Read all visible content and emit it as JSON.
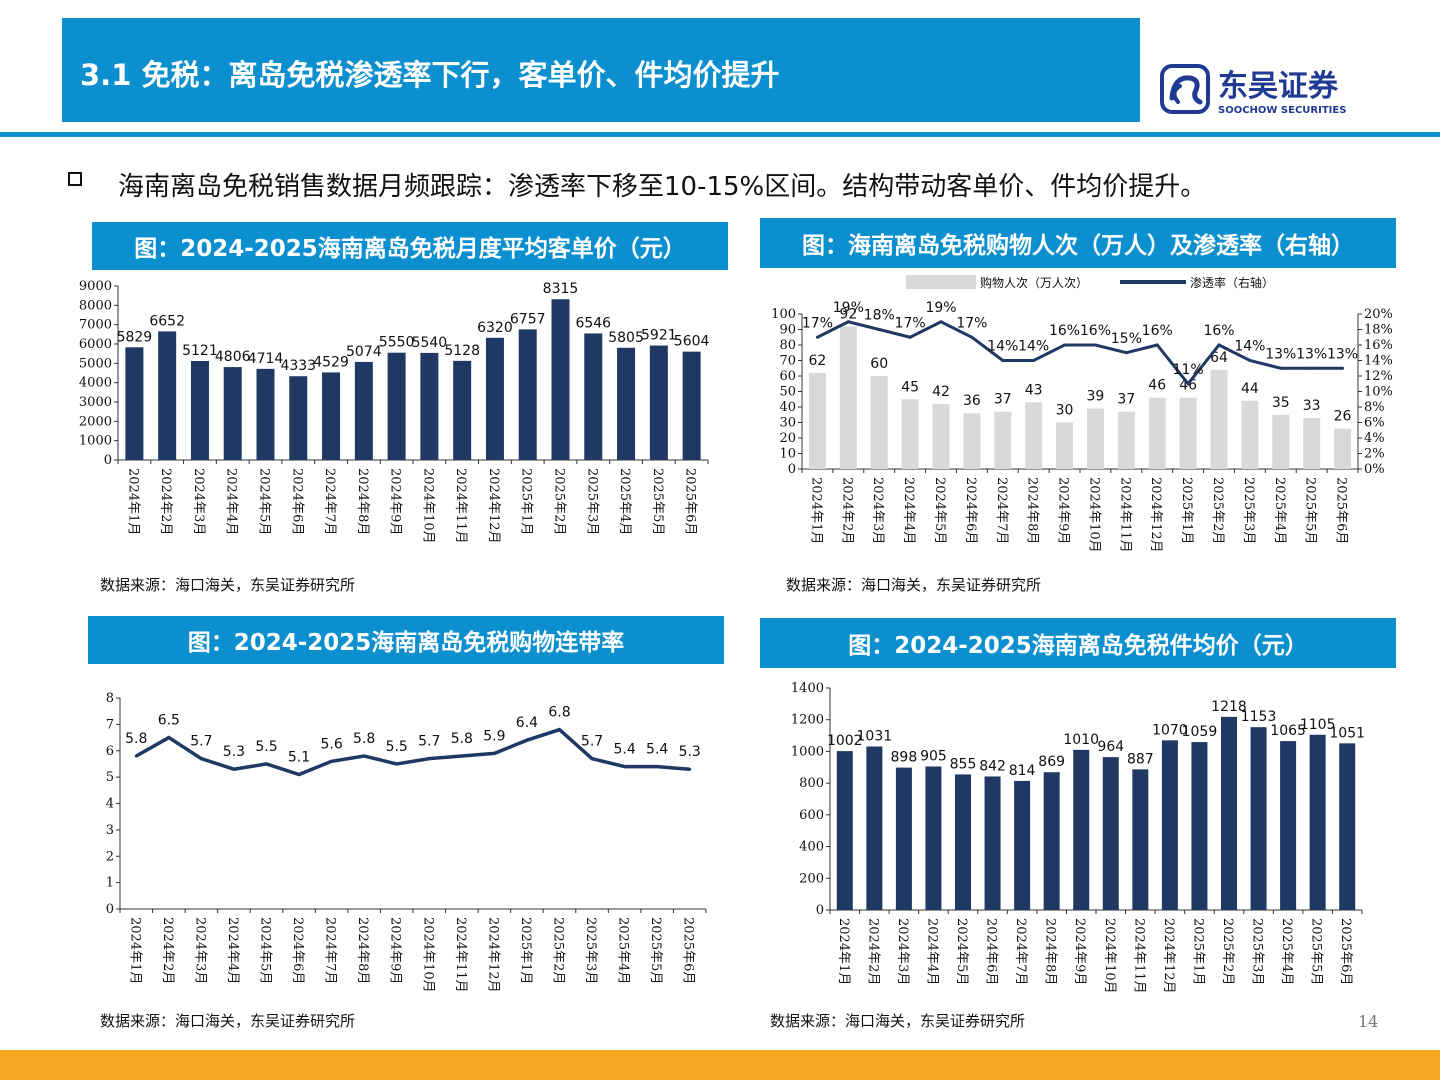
{
  "header": {
    "title": "3.1 免税：离岛免税渗透率下行，客单价、件均价提升",
    "brand_cn": "东吴证券",
    "brand_en": "SOOCHOW SECURITIES",
    "brand_color": "#0b8fcf",
    "accent_color": "#f5a623"
  },
  "bullet": {
    "text": "海南离岛免税销售数据月频跟踪：渗透率下移至10-15%区间。结构带动客单价、件均价提升。"
  },
  "page_number": "14",
  "chart_data": [
    {
      "type": "bar",
      "title": "图：2024-2025海南离岛免税月度平均客单价（元）",
      "source": "数据来源：海口海关，东吴证券研究所",
      "categories": [
        "2024年1月",
        "2024年2月",
        "2024年3月",
        "2024年4月",
        "2024年5月",
        "2024年6月",
        "2024年7月",
        "2024年8月",
        "2024年9月",
        "2024年10月",
        "2024年11月",
        "2024年12月",
        "2025年1月",
        "2025年2月",
        "2025年3月",
        "2025年4月",
        "2025年5月",
        "2025年6月"
      ],
      "values": [
        5829,
        6652,
        5121,
        4806,
        4714,
        4333,
        4529,
        5074,
        5550,
        5540,
        5128,
        6320,
        6757,
        8315,
        6546,
        5805,
        5921,
        5604
      ],
      "ylim": [
        0,
        9000
      ],
      "yticks": [
        0,
        1000,
        2000,
        3000,
        4000,
        5000,
        6000,
        7000,
        8000,
        9000
      ],
      "color": "#1f3864",
      "grid": false
    },
    {
      "type": "bar+line",
      "title": "图：海南离岛免税购物人次（万人）及渗透率（右轴）",
      "source": "数据来源：海口海关，东吴证券研究所",
      "categories": [
        "2024年1月",
        "2024年2月",
        "2024年3月",
        "2024年4月",
        "2024年5月",
        "2024年6月",
        "2024年7月",
        "2024年8月",
        "2024年9月",
        "2024年10月",
        "2024年11月",
        "2024年12月",
        "2025年1月",
        "2025年2月",
        "2025年3月",
        "2025年4月",
        "2025年5月",
        "2025年6月"
      ],
      "series": [
        {
          "name": "购物人次（万人次）",
          "type": "bar",
          "axis": "left",
          "color": "#d9d9d9",
          "values": [
            62,
            92,
            60,
            45,
            42,
            36,
            37,
            43,
            30,
            39,
            37,
            46,
            46,
            64,
            44,
            35,
            33,
            26
          ],
          "labels": [
            "62",
            "92",
            "60",
            "45",
            "42",
            "36",
            "37",
            "43",
            "30",
            "39",
            "37",
            "46",
            "46",
            "64",
            "44",
            "35",
            "33",
            "26"
          ]
        },
        {
          "name": "渗透率（右轴）",
          "type": "line",
          "axis": "right",
          "color": "#1f3864",
          "values": [
            17,
            19,
            18,
            17,
            19,
            17,
            14,
            14,
            16,
            16,
            15,
            16,
            11,
            16,
            14,
            13,
            13,
            13
          ],
          "labels": [
            "17%",
            "19%",
            "18%",
            "17%",
            "19%",
            "17%",
            "14%",
            "14%",
            "16%",
            "16%",
            "15%",
            "16%",
            "11%",
            "16%",
            "14%",
            "13%",
            "13%",
            "13%"
          ]
        }
      ],
      "ylim_left": [
        0,
        100
      ],
      "yticks_left": [
        0,
        10,
        20,
        30,
        40,
        50,
        60,
        70,
        80,
        90,
        100
      ],
      "ylim_right": [
        0,
        20
      ],
      "yticks_right": [
        "0%",
        "2%",
        "4%",
        "6%",
        "8%",
        "10%",
        "12%",
        "14%",
        "16%",
        "18%",
        "20%"
      ],
      "legend_position": "top",
      "grid": false
    },
    {
      "type": "line",
      "title": "图：2024-2025海南离岛免税购物连带率",
      "source": "数据来源：海口海关，东吴证券研究所",
      "categories": [
        "2024年1月",
        "2024年2月",
        "2024年3月",
        "2024年4月",
        "2024年5月",
        "2024年6月",
        "2024年7月",
        "2024年8月",
        "2024年9月",
        "2024年10月",
        "2024年11月",
        "2024年12月",
        "2025年1月",
        "2025年2月",
        "2025年3月",
        "2025年4月",
        "2025年5月",
        "2025年6月"
      ],
      "values": [
        5.8,
        6.5,
        5.7,
        5.3,
        5.5,
        5.1,
        5.6,
        5.8,
        5.5,
        5.7,
        5.8,
        5.9,
        6.4,
        6.8,
        5.7,
        5.4,
        5.4,
        5.3
      ],
      "labels": [
        "5.8",
        "6.5",
        "5.7",
        "5.3",
        "5.5",
        "5.1",
        "5.6",
        "5.8",
        "5.5",
        "5.7",
        "5.8",
        "5.9",
        "6.4",
        "6.8",
        "5.7",
        "5.4",
        "5.4",
        "5.3"
      ],
      "ylim": [
        0,
        8
      ],
      "yticks": [
        0,
        1,
        2,
        3,
        4,
        5,
        6,
        7,
        8
      ],
      "color": "#1f3864",
      "grid": false
    },
    {
      "type": "bar",
      "title": "图：2024-2025海南离岛免税件均价（元）",
      "source": "数据来源：海口海关，东吴证券研究所",
      "categories": [
        "2024年1月",
        "2024年2月",
        "2024年3月",
        "2024年4月",
        "2024年5月",
        "2024年6月",
        "2024年7月",
        "2024年8月",
        "2024年9月",
        "2024年10月",
        "2024年11月",
        "2024年12月",
        "2025年1月",
        "2025年2月",
        "2025年3月",
        "2025年4月",
        "2025年5月",
        "2025年6月"
      ],
      "values": [
        1002,
        1031,
        898,
        905,
        855,
        842,
        814,
        869,
        1010,
        964,
        887,
        1070,
        1059,
        1218,
        1153,
        1065,
        1105,
        1051
      ],
      "ylim": [
        0,
        1400
      ],
      "yticks": [
        0,
        200,
        400,
        600,
        800,
        1000,
        1200,
        1400
      ],
      "color": "#1f3864",
      "grid": false
    }
  ]
}
